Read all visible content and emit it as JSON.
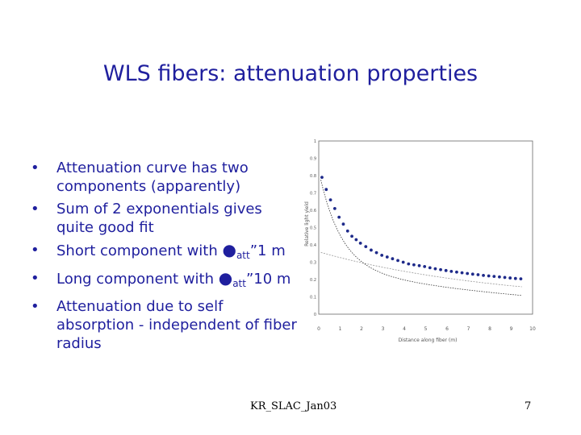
{
  "slide": {
    "title": "WLS fibers: attenuation properties",
    "footer": "KR_SLAC_Jan03",
    "page_number": "7"
  },
  "bullets": [
    {
      "text": "Attenuation curve has two components (apparently)"
    },
    {
      "text": "Sum of 2 exponentials gives quite good fit"
    },
    {
      "pre": "Short component with ",
      "symbol": "●",
      "sub": "att",
      "post": "”1 m"
    },
    {
      "pre": "Long component with ",
      "symbol": "●",
      "sub": "att",
      "post": "”10 m"
    },
    {
      "text": "Attenuation due to self absorption - independent of fiber radius"
    }
  ],
  "chart_data": {
    "type": "scatter",
    "xlabel": "Distance along fiber (m)",
    "ylabel": "Relative light yield",
    "xlim": [
      0,
      10
    ],
    "ylim": [
      0,
      1
    ],
    "xticks": [
      "0",
      "1",
      "2",
      "3",
      "4",
      "5",
      "6",
      "7",
      "8",
      "9",
      "10"
    ],
    "yticks": [
      "0",
      "0.1",
      "0.2",
      "0.3",
      "0.4",
      "0.5",
      "0.6",
      "0.7",
      "0.8",
      "0.9",
      "1"
    ],
    "points": [
      [
        0.15,
        0.79
      ],
      [
        0.35,
        0.72
      ],
      [
        0.55,
        0.66
      ],
      [
        0.75,
        0.61
      ],
      [
        0.95,
        0.56
      ],
      [
        1.15,
        0.52
      ],
      [
        1.35,
        0.48
      ],
      [
        1.55,
        0.45
      ],
      [
        1.75,
        0.43
      ],
      [
        1.95,
        0.41
      ],
      [
        2.2,
        0.39
      ],
      [
        2.45,
        0.37
      ],
      [
        2.7,
        0.355
      ],
      [
        2.95,
        0.34
      ],
      [
        3.2,
        0.33
      ],
      [
        3.45,
        0.32
      ],
      [
        3.7,
        0.31
      ],
      [
        3.95,
        0.3
      ],
      [
        4.2,
        0.29
      ],
      [
        4.45,
        0.285
      ],
      [
        4.7,
        0.28
      ],
      [
        4.95,
        0.275
      ],
      [
        5.2,
        0.268
      ],
      [
        5.45,
        0.262
      ],
      [
        5.7,
        0.257
      ],
      [
        5.95,
        0.252
      ],
      [
        6.2,
        0.247
      ],
      [
        6.45,
        0.243
      ],
      [
        6.7,
        0.239
      ],
      [
        6.95,
        0.235
      ],
      [
        7.2,
        0.231
      ],
      [
        7.45,
        0.228
      ],
      [
        7.7,
        0.224
      ],
      [
        7.95,
        0.221
      ],
      [
        8.2,
        0.218
      ],
      [
        8.45,
        0.215
      ],
      [
        8.7,
        0.212
      ],
      [
        8.95,
        0.209
      ],
      [
        9.2,
        0.206
      ],
      [
        9.45,
        0.204
      ]
    ],
    "fit": {
      "type": "sum_of_two_exponentials"
    },
    "long_component": {
      "type": "single_exponential"
    },
    "grid": false,
    "colors": {
      "points": "#1e2a8a",
      "fit": "#333333",
      "component": "#999999"
    }
  }
}
